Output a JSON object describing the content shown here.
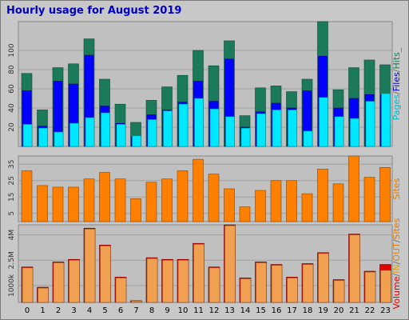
{
  "title": "Hourly usage for August 2019",
  "colors": {
    "hits": "#1a7a5a",
    "files": "#0000ff",
    "pages": "#00e8ff",
    "sites": "#ff8000",
    "volume": "#e00000",
    "in": "#f0a050",
    "out": "#f0c030",
    "grid": "#a0a0a0",
    "panel": "#c0c0c0",
    "label_sep": "#707070"
  },
  "chart_data": [
    {
      "type": "bar",
      "name": "top-panel",
      "categories": [
        "0",
        "1",
        "2",
        "3",
        "4",
        "5",
        "6",
        "7",
        "8",
        "9",
        "10",
        "11",
        "12",
        "13",
        "14",
        "15",
        "16",
        "17",
        "18",
        "19",
        "20",
        "21",
        "22",
        "23"
      ],
      "ylim": [
        0,
        130
      ],
      "yticks": [
        20,
        40,
        60,
        80,
        100
      ],
      "legend": [
        {
          "text": "Pages",
          "color": "#00b8c8"
        },
        {
          "text": "/",
          "color": "#707070"
        },
        {
          "text": "Files",
          "color": "#0000c8"
        },
        {
          "text": "/",
          "color": "#707070"
        },
        {
          "text": "Hits",
          "color": "#1a7a5a"
        },
        {
          "text": "_",
          "color": "#707070"
        }
      ],
      "series": [
        {
          "name": "Hits",
          "values": [
            76,
            38,
            82,
            86,
            112,
            70,
            44,
            25,
            48,
            62,
            74,
            100,
            84,
            110,
            32,
            61,
            63,
            57,
            70,
            130,
            59,
            82,
            90,
            85
          ]
        },
        {
          "name": "Files",
          "values": [
            58,
            21,
            68,
            65,
            95,
            42,
            24,
            10,
            33,
            38,
            46,
            68,
            47,
            91,
            20,
            36,
            45,
            40,
            58,
            94,
            40,
            50,
            54,
            54
          ]
        },
        {
          "name": "Pages",
          "values": [
            23,
            19,
            15,
            24,
            30,
            35,
            23,
            11,
            28,
            37,
            44,
            50,
            39,
            31,
            19,
            34,
            38,
            38,
            16,
            51,
            31,
            29,
            47,
            55
          ]
        }
      ]
    },
    {
      "type": "bar",
      "name": "middle-panel",
      "categories": [
        "0",
        "1",
        "2",
        "3",
        "4",
        "5",
        "6",
        "7",
        "8",
        "9",
        "10",
        "11",
        "12",
        "13",
        "14",
        "15",
        "16",
        "17",
        "18",
        "19",
        "20",
        "21",
        "22",
        "23"
      ],
      "ylim": [
        0,
        40
      ],
      "yticks": [
        5,
        15,
        25,
        35
      ],
      "legend": [
        {
          "text": "Sites",
          "color": "#e07800"
        }
      ],
      "series": [
        {
          "name": "Sites",
          "values": [
            31,
            22,
            21,
            21,
            26,
            30,
            26,
            14,
            24,
            26,
            31,
            38,
            29,
            20,
            9,
            19,
            25,
            25,
            17,
            32,
            23,
            40,
            27,
            33
          ]
        }
      ]
    },
    {
      "type": "bar",
      "name": "bottom-panel",
      "categories": [
        "0",
        "1",
        "2",
        "3",
        "4",
        "5",
        "6",
        "7",
        "8",
        "9",
        "10",
        "11",
        "12",
        "13",
        "14",
        "15",
        "16",
        "17",
        "18",
        "19",
        "20",
        "21",
        "22",
        "23"
      ],
      "ylim": [
        0,
        4600000
      ],
      "ytick_values": [
        1000000,
        2500000,
        4000000
      ],
      "ytick_labels": [
        "1000k",
        "2.5M",
        "4M"
      ],
      "legend": [
        {
          "text": "Volume",
          "color": "#e00000"
        },
        {
          "text": "/",
          "color": "#707070"
        },
        {
          "text": "IN",
          "color": "#e0a000"
        },
        {
          "text": "/",
          "color": "#707070"
        },
        {
          "text": "OUT",
          "color": "#d08020"
        },
        {
          "text": "/",
          "color": "#707070"
        },
        {
          "text": "Sites",
          "color": "#e07800"
        }
      ],
      "series": [
        {
          "name": "Volume",
          "values": [
            2100000,
            900000,
            2400000,
            2550000,
            4400000,
            3400000,
            1500000,
            100000,
            2650000,
            2550000,
            2550000,
            3500000,
            2100000,
            4600000,
            1450000,
            2400000,
            2250000,
            1500000,
            2300000,
            2950000,
            1350000,
            4050000,
            1850000,
            2250000
          ]
        },
        {
          "name": "Out",
          "values": [
            2050000,
            850000,
            2350000,
            2500000,
            4350000,
            3350000,
            1450000,
            80000,
            2600000,
            2500000,
            2500000,
            3450000,
            2050000,
            4550000,
            1400000,
            2350000,
            2200000,
            1450000,
            2250000,
            2900000,
            1300000,
            4000000,
            1800000,
            1900000
          ]
        }
      ]
    }
  ]
}
